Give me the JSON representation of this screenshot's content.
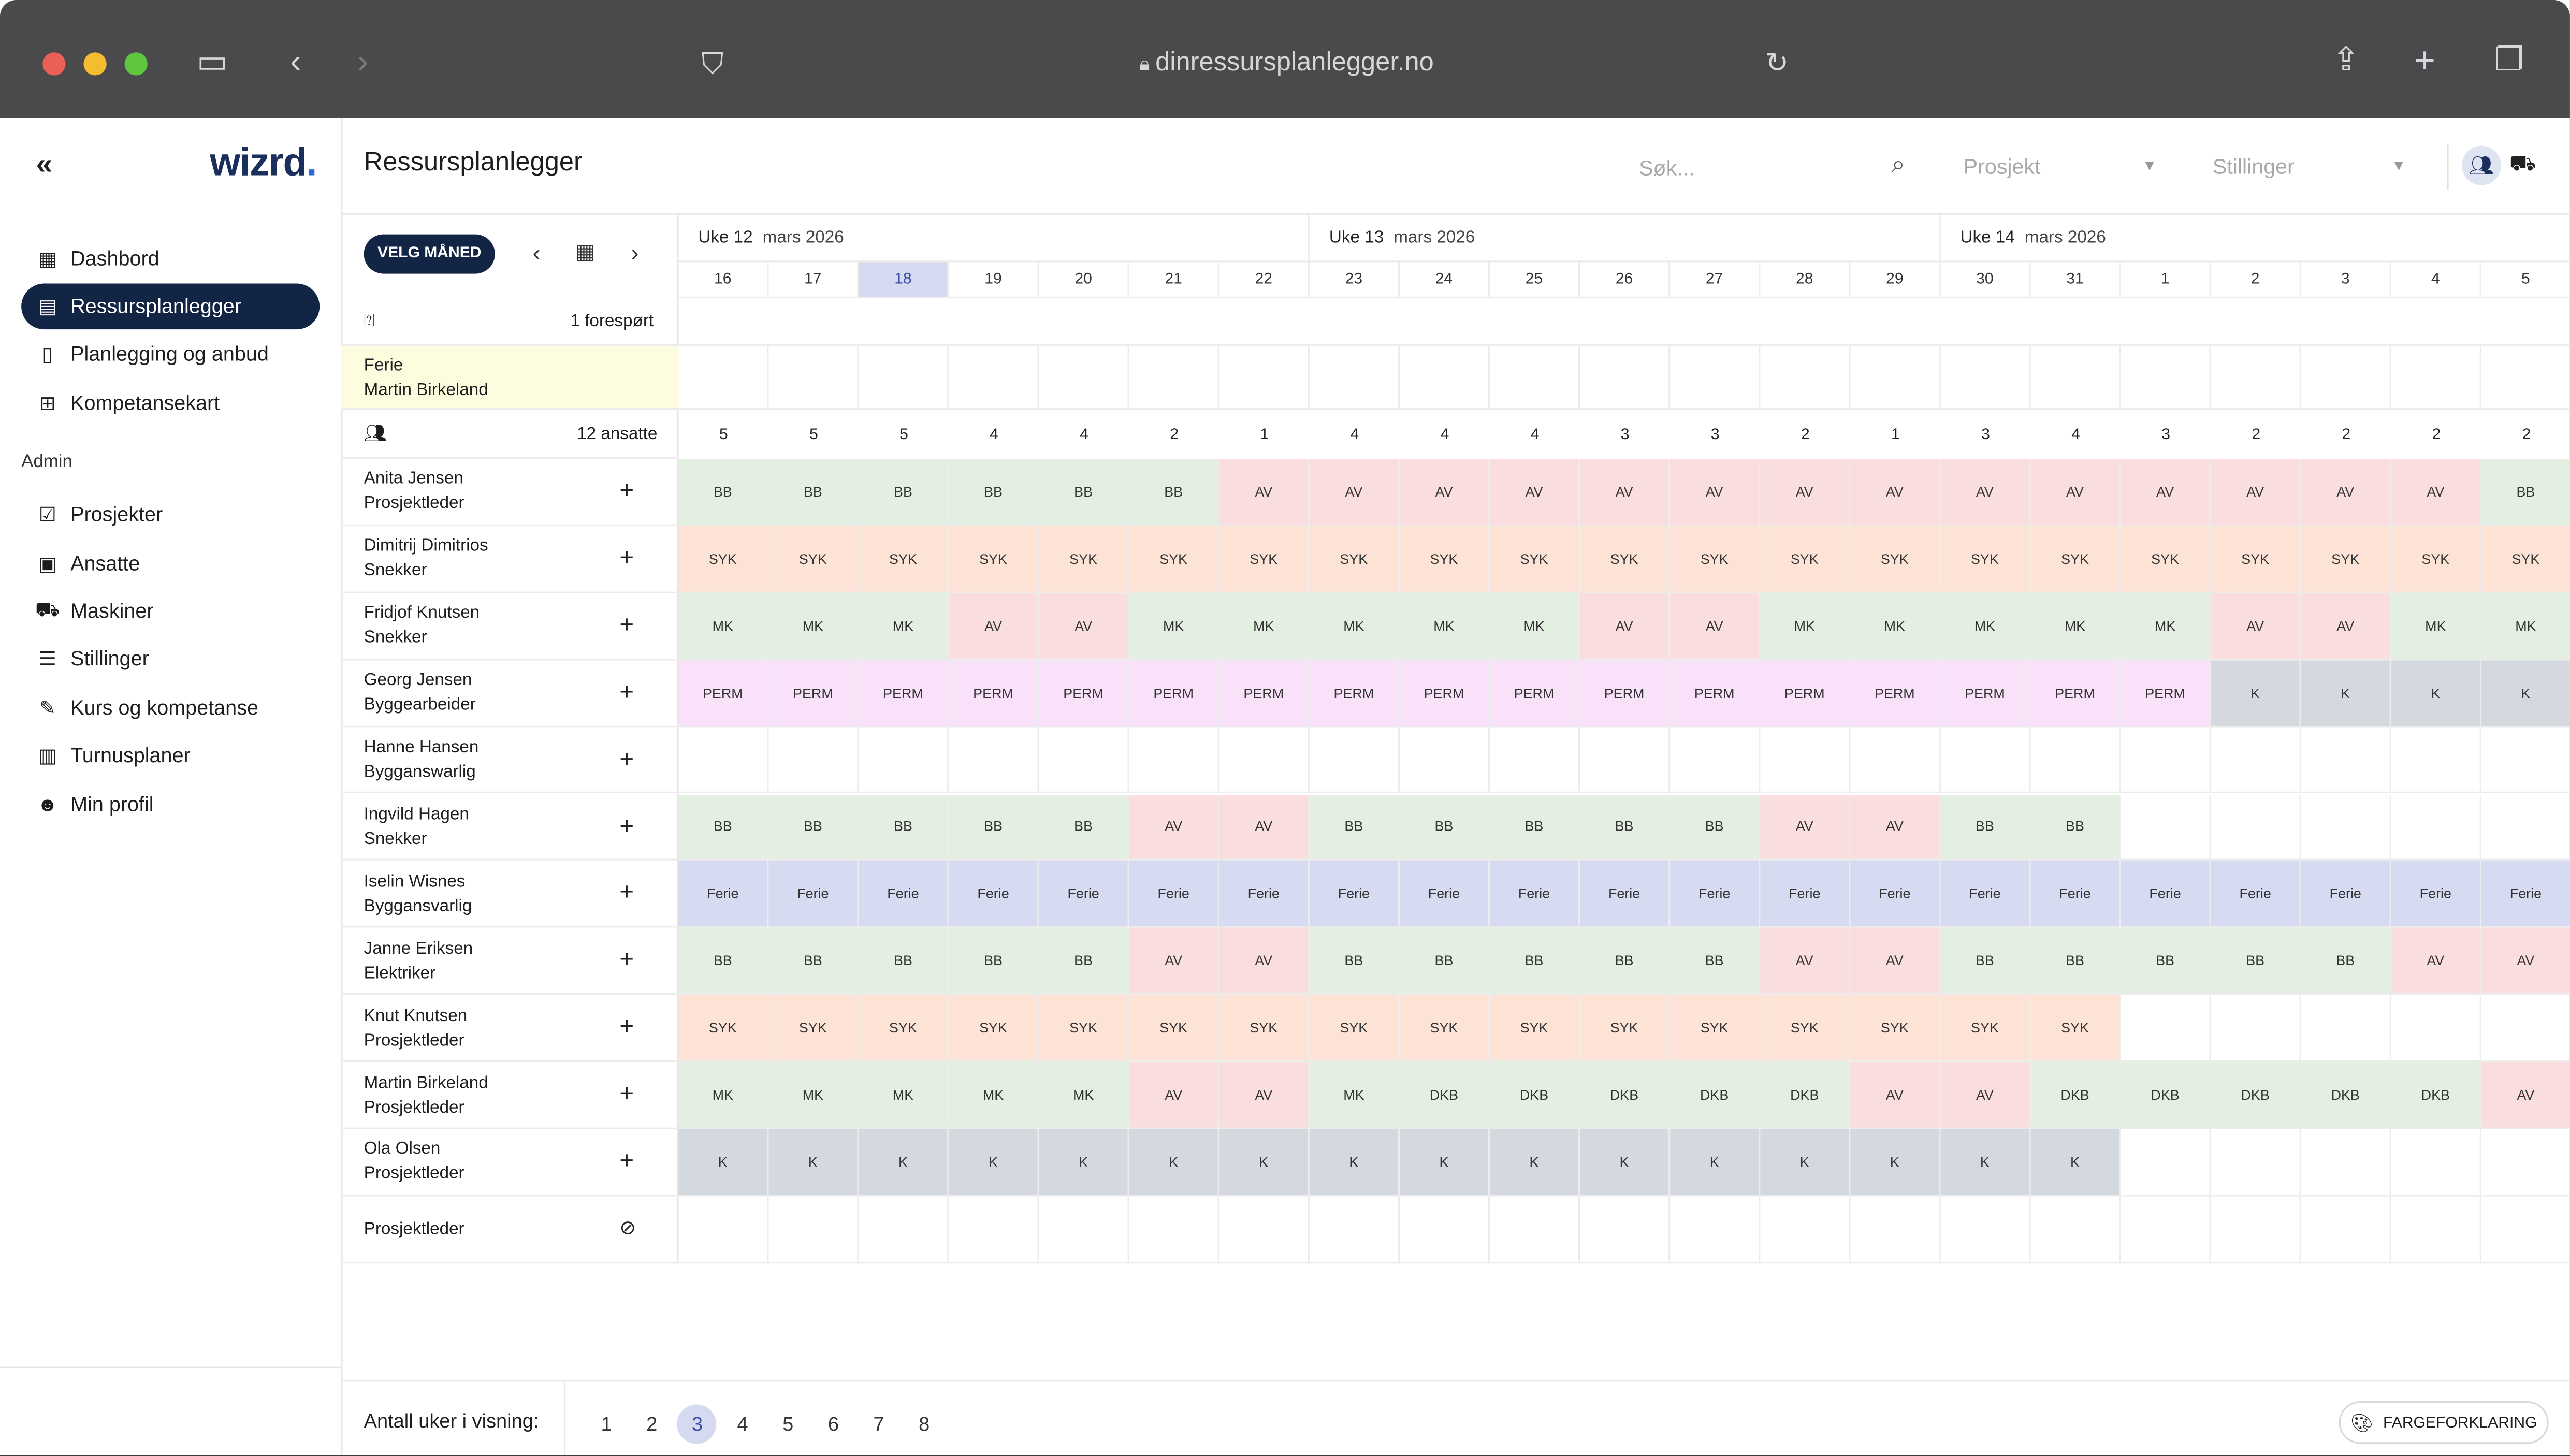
{
  "browser": {
    "url": "dinressursplanlegger.no"
  },
  "sidebar": {
    "logo": "wizrd",
    "logo_dot": ".",
    "collapse_icon": "«",
    "main_items": [
      {
        "label": "Dashbord",
        "icon": "dashboard-icon"
      },
      {
        "label": "Ressursplanlegger",
        "icon": "calendar-icon",
        "active": true
      },
      {
        "label": "Planlegging og anbud",
        "icon": "document-icon"
      },
      {
        "label": "Kompetansekart",
        "icon": "table-icon"
      }
    ],
    "admin_label": "Admin",
    "admin_items": [
      {
        "label": "Prosjekter",
        "icon": "checklist-icon"
      },
      {
        "label": "Ansatte",
        "icon": "id-card-icon"
      },
      {
        "label": "Maskiner",
        "icon": "truck-icon"
      },
      {
        "label": "Stillinger",
        "icon": "person-list-icon"
      },
      {
        "label": "Kurs og kompetanse",
        "icon": "course-icon"
      },
      {
        "label": "Turnusplaner",
        "icon": "schedule-icon"
      },
      {
        "label": "Min profil",
        "icon": "profile-icon"
      }
    ]
  },
  "header": {
    "title": "Ressursplanlegger",
    "search_placeholder": "Søk...",
    "project_dropdown": "Prosjekt",
    "positions_dropdown": "Stillinger"
  },
  "toolbar": {
    "velg_maned": "VELG MÅNED"
  },
  "weeks": [
    {
      "label": "Uke 12",
      "month": "mars 2026"
    },
    {
      "label": "Uke 13",
      "month": "mars 2026"
    },
    {
      "label": "Uke 14",
      "month": "mars 2026"
    }
  ],
  "days": [
    "16",
    "17",
    "18",
    "19",
    "20",
    "21",
    "22",
    "23",
    "24",
    "25",
    "26",
    "27",
    "28",
    "29",
    "30",
    "31",
    "1",
    "2",
    "3",
    "4",
    "5"
  ],
  "today_index": 2,
  "requests": {
    "label": "1 forespørt"
  },
  "vacation_row": {
    "line1": "Ferie",
    "line2": "Martin Birkeland"
  },
  "employees_row": {
    "label": "12 ansatte",
    "counts": [
      "5",
      "5",
      "5",
      "4",
      "4",
      "2",
      "1",
      "4",
      "4",
      "4",
      "3",
      "3",
      "2",
      "1",
      "3",
      "4",
      "3",
      "2",
      "2",
      "2",
      "2"
    ]
  },
  "employees": [
    {
      "name": "Anita Jensen",
      "role": "Prosjektleder",
      "cells": [
        "BB",
        "BB",
        "BB",
        "BB",
        "BB",
        "BB",
        "AV",
        "AV",
        "AV",
        "AV",
        "AV",
        "AV",
        "AV",
        "AV",
        "AV",
        "AV",
        "AV",
        "AV",
        "AV",
        "AV",
        "BB"
      ]
    },
    {
      "name": "Dimitrij Dimitrios",
      "role": "Snekker",
      "cells": [
        "SYK",
        "SYK",
        "SYK",
        "SYK",
        "SYK",
        "SYK",
        "SYK",
        "SYK",
        "SYK",
        "SYK",
        "SYK",
        "SYK",
        "SYK",
        "SYK",
        "SYK",
        "SYK",
        "SYK",
        "SYK",
        "SYK",
        "SYK",
        "SYK"
      ]
    },
    {
      "name": "Fridjof Knutsen",
      "role": "Snekker",
      "cells": [
        "MK",
        "MK",
        "MK",
        "AV",
        "AV",
        "MK",
        "MK",
        "MK",
        "MK",
        "MK",
        "AV",
        "AV",
        "MK",
        "MK",
        "MK",
        "MK",
        "MK",
        "AV",
        "AV",
        "MK",
        "MK"
      ]
    },
    {
      "name": "Georg Jensen",
      "role": "Byggearbeider",
      "cells": [
        "PERM",
        "PERM",
        "PERM",
        "PERM",
        "PERM",
        "PERM",
        "PERM",
        "PERM",
        "PERM",
        "PERM",
        "PERM",
        "PERM",
        "PERM",
        "PERM",
        "PERM",
        "PERM",
        "PERM",
        "K",
        "K",
        "K",
        "K"
      ]
    },
    {
      "name": "Hanne Hansen",
      "role": "Bygganswarlig",
      "cells": [
        "",
        "",
        "",
        "",
        "",
        "",
        "",
        "",
        "",
        "",
        "",
        "",
        "",
        "",
        "",
        "",
        "",
        "",
        "",
        "",
        ""
      ]
    },
    {
      "name": "Ingvild Hagen",
      "role": "Snekker",
      "cells": [
        "BB",
        "BB",
        "BB",
        "BB",
        "BB",
        "AV",
        "AV",
        "BB",
        "BB",
        "BB",
        "BB",
        "BB",
        "AV",
        "AV",
        "BB",
        "BB",
        "",
        "",
        "",
        "",
        ""
      ]
    },
    {
      "name": "Iselin Wisnes",
      "role": "Byggansvarlig",
      "cells": [
        "Ferie",
        "Ferie",
        "Ferie",
        "Ferie",
        "Ferie",
        "Ferie",
        "Ferie",
        "Ferie",
        "Ferie",
        "Ferie",
        "Ferie",
        "Ferie",
        "Ferie",
        "Ferie",
        "Ferie",
        "Ferie",
        "Ferie",
        "Ferie",
        "Ferie",
        "Ferie",
        "Ferie"
      ]
    },
    {
      "name": "Janne Eriksen",
      "role": "Elektriker",
      "cells": [
        "BB",
        "BB",
        "BB",
        "BB",
        "BB",
        "AV",
        "AV",
        "BB",
        "BB",
        "BB",
        "BB",
        "BB",
        "AV",
        "AV",
        "BB",
        "BB",
        "BB",
        "BB",
        "BB",
        "AV",
        "AV"
      ]
    },
    {
      "name": "Knut Knutsen",
      "role": "Prosjektleder",
      "cells": [
        "SYK",
        "SYK",
        "SYK",
        "SYK",
        "SYK",
        "SYK",
        "SYK",
        "SYK",
        "SYK",
        "SYK",
        "SYK",
        "SYK",
        "SYK",
        "SYK",
        "SYK",
        "SYK",
        "",
        "",
        "",
        "",
        ""
      ]
    },
    {
      "name": "Martin Birkeland",
      "role": "Prosjektleder",
      "cells": [
        "MK",
        "MK",
        "MK",
        "MK",
        "MK",
        "AV",
        "AV",
        "MK",
        "DKB",
        "DKB",
        "DKB",
        "DKB",
        "DKB",
        "AV",
        "AV",
        "DKB",
        "DKB",
        "DKB",
        "DKB",
        "DKB",
        "AV"
      ]
    },
    {
      "name": "Ola Olsen",
      "role": "Prosjektleder",
      "cells": [
        "K",
        "K",
        "K",
        "K",
        "K",
        "K",
        "K",
        "K",
        "K",
        "K",
        "K",
        "K",
        "K",
        "K",
        "K",
        "K",
        "",
        "",
        "",
        "",
        ""
      ]
    }
  ],
  "vacant_row": {
    "label": "Prosjektleder"
  },
  "footer": {
    "weeks_label": "Antall uker i visning:",
    "pages": [
      "1",
      "2",
      "3",
      "4",
      "5",
      "6",
      "7",
      "8"
    ],
    "active_page": 2,
    "color_legend": "FARGEFORKLARING"
  }
}
